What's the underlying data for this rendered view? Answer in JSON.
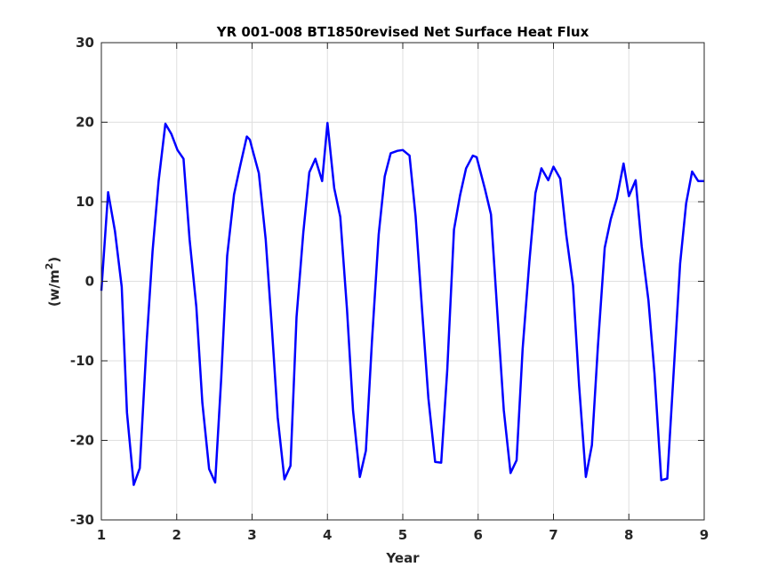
{
  "chart_data": {
    "type": "line",
    "title": "YR 001-008 BT1850revised Net Surface Heat Flux",
    "xlabel": "Year",
    "ylabel": {
      "prefix": "(w/m",
      "superscript": "2",
      "suffix": ")"
    },
    "xlim": [
      1,
      9
    ],
    "ylim": [
      -30,
      30
    ],
    "xticks": [
      "1",
      "2",
      "3",
      "4",
      "5",
      "6",
      "7",
      "8",
      "9"
    ],
    "yticks": [
      "-30",
      "-20",
      "-10",
      "0",
      "10",
      "20",
      "30"
    ],
    "grid": true,
    "box": true,
    "series": [
      {
        "color": "#0000ff",
        "x": [
          1.0,
          1.09,
          1.18,
          1.27,
          1.34,
          1.43,
          1.51,
          1.6,
          1.68,
          1.76,
          1.85,
          1.93,
          2.01,
          2.09,
          2.17,
          2.26,
          2.34,
          2.43,
          2.51,
          2.59,
          2.67,
          2.76,
          2.84,
          2.93,
          2.97,
          3.01,
          3.09,
          3.18,
          3.26,
          3.34,
          3.43,
          3.51,
          3.59,
          3.68,
          3.76,
          3.84,
          3.93,
          4.0,
          4.09,
          4.17,
          4.26,
          4.34,
          4.43,
          4.51,
          4.59,
          4.68,
          4.76,
          4.84,
          4.93,
          5.0,
          5.09,
          5.17,
          5.26,
          5.34,
          5.43,
          5.51,
          5.59,
          5.68,
          5.76,
          5.84,
          5.93,
          5.98,
          6.09,
          6.17,
          6.26,
          6.34,
          6.43,
          6.51,
          6.59,
          6.68,
          6.76,
          6.84,
          6.93,
          7.0,
          7.09,
          7.17,
          7.26,
          7.34,
          7.43,
          7.51,
          7.59,
          7.68,
          7.76,
          7.84,
          7.93,
          8.0,
          8.09,
          8.17,
          8.26,
          8.34,
          8.43,
          8.51,
          8.59,
          8.68,
          8.76,
          8.84,
          8.92,
          9.0
        ],
        "y": [
          -1.2,
          11.2,
          6.3,
          -0.7,
          -16.5,
          -25.6,
          -23.5,
          -7.7,
          3.8,
          12.6,
          19.8,
          18.5,
          16.5,
          15.4,
          5.3,
          -3.2,
          -15.3,
          -23.6,
          -25.3,
          -12.2,
          3.2,
          10.9,
          14.4,
          18.2,
          17.8,
          16.4,
          13.6,
          5.3,
          -5.4,
          -17.1,
          -24.9,
          -23.2,
          -4.5,
          6.1,
          13.7,
          15.4,
          12.6,
          19.9,
          11.7,
          8.1,
          -3.6,
          -16.3,
          -24.6,
          -21.3,
          -7.6,
          5.9,
          13.2,
          16.1,
          16.4,
          16.5,
          15.8,
          8.2,
          -4.1,
          -14.7,
          -22.7,
          -22.8,
          -11.2,
          6.5,
          10.8,
          14.2,
          15.8,
          15.6,
          11.6,
          8.4,
          -4.7,
          -16.2,
          -24.1,
          -22.5,
          -8.5,
          2.5,
          11.1,
          14.2,
          12.7,
          14.4,
          12.9,
          5.8,
          -0.5,
          -13.1,
          -24.6,
          -20.6,
          -8.1,
          4.2,
          7.8,
          10.4,
          14.8,
          10.7,
          12.7,
          4.4,
          -2.4,
          -11.6,
          -25.0,
          -24.8,
          -12.1,
          2.2,
          9.8,
          13.8,
          12.6,
          12.6
        ]
      }
    ]
  }
}
